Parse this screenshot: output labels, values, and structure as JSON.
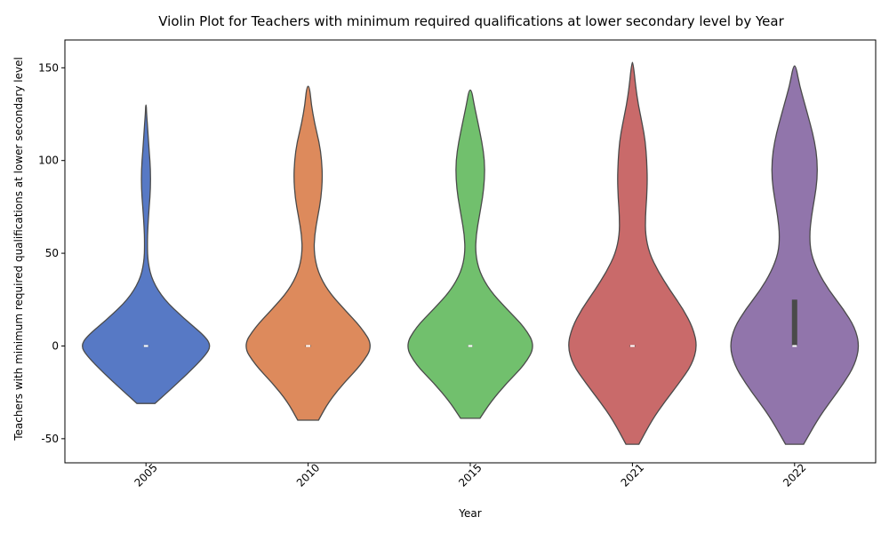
{
  "chart_data": {
    "type": "violin",
    "title": "Violin Plot for Teachers with minimum required qualifications at lower secondary level by Year",
    "xlabel": "Year",
    "ylabel": "Teachers with minimum required qualifications at lower secondary level",
    "categories": [
      "2005",
      "2010",
      "2015",
      "2021",
      "2022"
    ],
    "ylim": [
      -63,
      165
    ],
    "yticks": [
      -50,
      0,
      50,
      100,
      150
    ],
    "grid": false,
    "colors": [
      "#5779c5",
      "#dd8a5c",
      "#71c06d",
      "#c96a6a",
      "#9175ab"
    ],
    "violins": [
      {
        "year": "2005",
        "min": -31,
        "max": 130,
        "median": 0,
        "q1": 0,
        "q3": 0,
        "profile": [
          [
            -31,
            0.14
          ],
          [
            -25,
            0.33
          ],
          [
            -15,
            0.64
          ],
          [
            -5,
            0.92
          ],
          [
            0,
            1.0
          ],
          [
            5,
            0.92
          ],
          [
            15,
            0.58
          ],
          [
            25,
            0.28
          ],
          [
            35,
            0.1
          ],
          [
            45,
            0.03
          ],
          [
            55,
            0.02
          ],
          [
            65,
            0.03
          ],
          [
            75,
            0.05
          ],
          [
            85,
            0.07
          ],
          [
            95,
            0.07
          ],
          [
            105,
            0.05
          ],
          [
            115,
            0.03
          ],
          [
            125,
            0.01
          ],
          [
            130,
            0.005
          ]
        ]
      },
      {
        "year": "2010",
        "min": -40,
        "max": 140,
        "median": 0,
        "q1": 0,
        "q3": 0,
        "profile": [
          [
            -40,
            0.16
          ],
          [
            -30,
            0.32
          ],
          [
            -20,
            0.55
          ],
          [
            -10,
            0.82
          ],
          [
            0,
            1.0
          ],
          [
            10,
            0.82
          ],
          [
            20,
            0.55
          ],
          [
            30,
            0.3
          ],
          [
            40,
            0.15
          ],
          [
            50,
            0.09
          ],
          [
            60,
            0.1
          ],
          [
            70,
            0.15
          ],
          [
            80,
            0.2
          ],
          [
            90,
            0.22
          ],
          [
            100,
            0.21
          ],
          [
            110,
            0.17
          ],
          [
            120,
            0.1
          ],
          [
            130,
            0.05
          ],
          [
            140,
            0.02
          ]
        ]
      },
      {
        "year": "2015",
        "min": -39,
        "max": 138,
        "median": 0,
        "q1": 0,
        "q3": 0,
        "profile": [
          [
            -39,
            0.15
          ],
          [
            -30,
            0.32
          ],
          [
            -20,
            0.56
          ],
          [
            -10,
            0.84
          ],
          [
            0,
            1.0
          ],
          [
            10,
            0.84
          ],
          [
            20,
            0.56
          ],
          [
            30,
            0.3
          ],
          [
            40,
            0.14
          ],
          [
            50,
            0.08
          ],
          [
            60,
            0.09
          ],
          [
            70,
            0.14
          ],
          [
            80,
            0.19
          ],
          [
            90,
            0.22
          ],
          [
            100,
            0.22
          ],
          [
            110,
            0.18
          ],
          [
            120,
            0.12
          ],
          [
            130,
            0.06
          ],
          [
            138,
            0.02
          ]
        ]
      },
      {
        "year": "2021",
        "min": -53,
        "max": 153,
        "median": 0,
        "q1": 0,
        "q3": 0,
        "profile": [
          [
            -53,
            0.1
          ],
          [
            -40,
            0.3
          ],
          [
            -30,
            0.5
          ],
          [
            -20,
            0.72
          ],
          [
            -10,
            0.92
          ],
          [
            0,
            1.0
          ],
          [
            10,
            0.93
          ],
          [
            20,
            0.78
          ],
          [
            30,
            0.58
          ],
          [
            40,
            0.4
          ],
          [
            50,
            0.26
          ],
          [
            60,
            0.2
          ],
          [
            70,
            0.2
          ],
          [
            80,
            0.22
          ],
          [
            90,
            0.23
          ],
          [
            100,
            0.22
          ],
          [
            110,
            0.2
          ],
          [
            120,
            0.15
          ],
          [
            130,
            0.09
          ],
          [
            140,
            0.05
          ],
          [
            153,
            0.01
          ]
        ]
      },
      {
        "year": "2022",
        "min": -53,
        "max": 151,
        "median": 0,
        "q1": 0,
        "q3": 25,
        "profile": [
          [
            -53,
            0.14
          ],
          [
            -40,
            0.35
          ],
          [
            -30,
            0.55
          ],
          [
            -20,
            0.76
          ],
          [
            -10,
            0.93
          ],
          [
            0,
            1.0
          ],
          [
            10,
            0.93
          ],
          [
            20,
            0.75
          ],
          [
            30,
            0.53
          ],
          [
            40,
            0.36
          ],
          [
            50,
            0.25
          ],
          [
            60,
            0.23
          ],
          [
            70,
            0.26
          ],
          [
            80,
            0.31
          ],
          [
            90,
            0.35
          ],
          [
            100,
            0.35
          ],
          [
            110,
            0.31
          ],
          [
            120,
            0.24
          ],
          [
            130,
            0.16
          ],
          [
            140,
            0.08
          ],
          [
            151,
            0.02
          ]
        ]
      }
    ]
  }
}
